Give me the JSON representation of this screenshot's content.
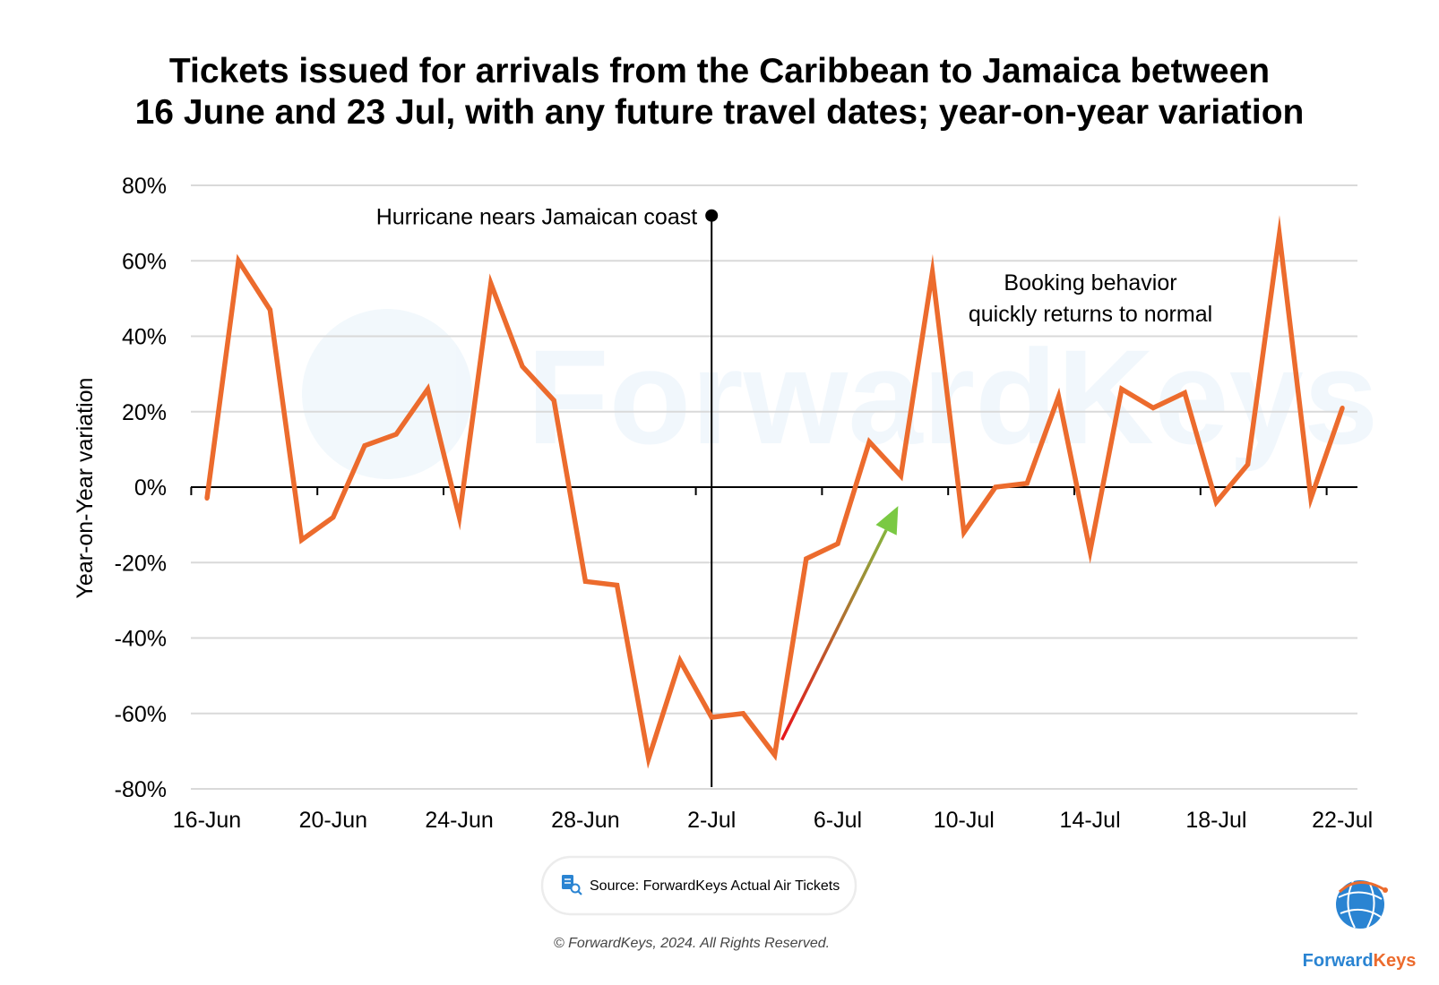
{
  "title_line1": "Tickets issued for arrivals from the Caribbean to Jamaica between",
  "title_line2": "16 June and 23 Jul, with any future travel dates; year-on-year variation",
  "chart_data": {
    "type": "line",
    "ylabel": "Year-on-Year variation",
    "ylim": [
      -80,
      80
    ],
    "y_ticks": [
      "80%",
      "60%",
      "40%",
      "20%",
      "0%",
      "-20%",
      "-40%",
      "-60%",
      "-80%"
    ],
    "x_tick_labels": [
      "16-Jun",
      "20-Jun",
      "24-Jun",
      "28-Jun",
      "2-Jul",
      "6-Jul",
      "10-Jul",
      "14-Jul",
      "18-Jul",
      "22-Jul"
    ],
    "x": [
      "16-Jun",
      "17-Jun",
      "18-Jun",
      "19-Jun",
      "20-Jun",
      "21-Jun",
      "22-Jun",
      "23-Jun",
      "24-Jun",
      "25-Jun",
      "26-Jun",
      "27-Jun",
      "28-Jun",
      "29-Jun",
      "30-Jun",
      "1-Jul",
      "2-Jul",
      "3-Jul",
      "4-Jul",
      "5-Jul",
      "6-Jul",
      "7-Jul",
      "8-Jul",
      "9-Jul",
      "10-Jul",
      "11-Jul",
      "12-Jul",
      "13-Jul",
      "14-Jul",
      "15-Jul",
      "16-Jul",
      "17-Jul",
      "18-Jul",
      "19-Jul",
      "20-Jul",
      "21-Jul",
      "22-Jul"
    ],
    "series": [
      {
        "color": "#ec6b2d",
        "values": [
          -3,
          60,
          47,
          -14,
          -8,
          11,
          14,
          26,
          -8,
          54,
          32,
          23,
          -25,
          -26,
          -72,
          -46,
          -61,
          -60,
          -71,
          -19,
          -15,
          12,
          3,
          57,
          -12,
          0,
          1,
          24,
          -17,
          26,
          21,
          25,
          -4,
          6,
          67,
          -3,
          21
        ]
      }
    ],
    "grid": true,
    "annotations": [
      {
        "text": "Hurricane nears Jamaican coast",
        "x": "2-Jul",
        "y": 72
      },
      {
        "text_line1": "Booking behavior",
        "text_line2": "quickly returns to normal"
      }
    ],
    "trend_arrow": {
      "from": [
        "4-Jul",
        -67
      ],
      "to": [
        "8-Jul",
        -5
      ],
      "color_start": "#e8141b",
      "color_end": "#7ac943"
    }
  },
  "watermark": "ForwardKeys",
  "source_text": "Source: ForwardKeys Actual Air Tickets",
  "copyright": "© ForwardKeys, 2024. All Rights Reserved.",
  "logo": {
    "part1": "Forward",
    "part2": "Keys",
    "color1": "#2a84d2",
    "color2": "#ec6b2d"
  },
  "icons": {
    "source": "document-search-icon",
    "logo": "globe-icon"
  }
}
